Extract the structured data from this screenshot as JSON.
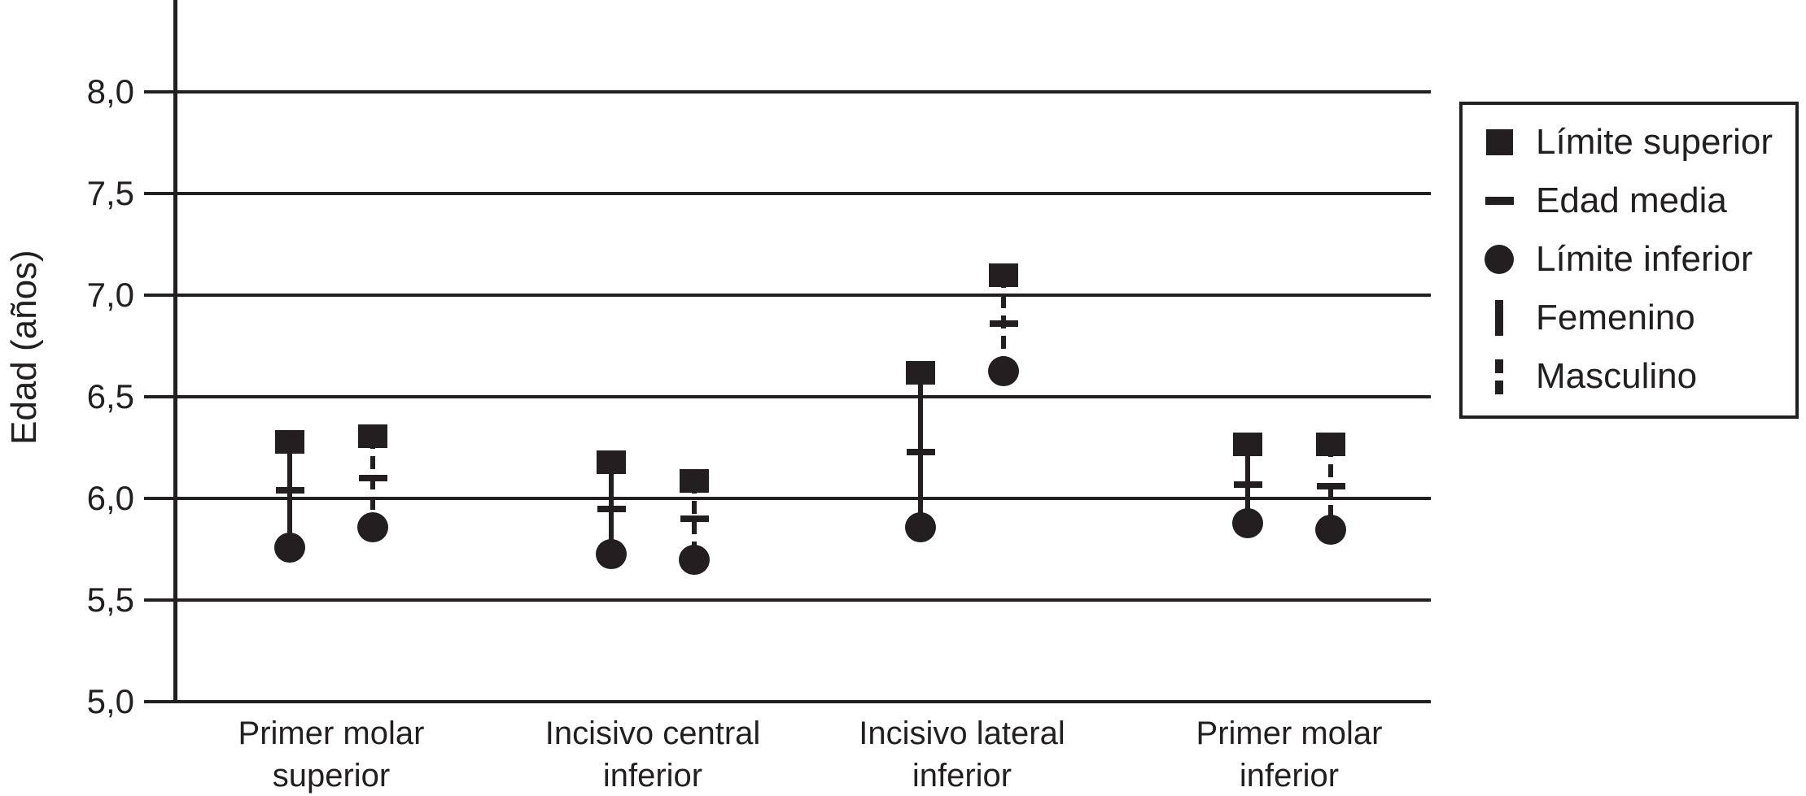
{
  "chart_data": {
    "type": "scatter",
    "title": "",
    "xlabel": "",
    "ylabel": "Edad (años)",
    "ylim": [
      5.0,
      8.45
    ],
    "grid": true,
    "legend_position": "right",
    "yticks": [
      {
        "value": 8.0,
        "label": "8,0"
      },
      {
        "value": 7.5,
        "label": "7,5"
      },
      {
        "value": 7.0,
        "label": "7,0"
      },
      {
        "value": 6.5,
        "label": "6,5"
      },
      {
        "value": 6.0,
        "label": "6,0"
      },
      {
        "value": 5.5,
        "label": "5,5"
      },
      {
        "value": 5.0,
        "label": "5,0"
      }
    ],
    "categories": [
      {
        "label": "Primer molar superior",
        "lines": [
          "Primer molar",
          "superior"
        ]
      },
      {
        "label": "Incisivo central inferior",
        "lines": [
          "Incisivo central",
          "inferior"
        ]
      },
      {
        "label": "Incisivo lateral inferior",
        "lines": [
          "Incisivo lateral",
          "inferior"
        ]
      },
      {
        "label": "Primer molar inferior",
        "lines": [
          "Primer molar",
          "inferior"
        ]
      }
    ],
    "series": [
      {
        "name": "Femenino",
        "line_style": "solid",
        "data": [
          {
            "limite_superior": 6.28,
            "edad_media": 6.04,
            "limite_inferior": 5.76
          },
          {
            "limite_superior": 6.18,
            "edad_media": 5.95,
            "limite_inferior": 5.73
          },
          {
            "limite_superior": 6.62,
            "edad_media": 6.23,
            "limite_inferior": 5.86
          },
          {
            "limite_superior": 6.27,
            "edad_media": 6.07,
            "limite_inferior": 5.88
          }
        ]
      },
      {
        "name": "Masculino",
        "line_style": "dashed",
        "data": [
          {
            "limite_superior": 6.31,
            "edad_media": 6.1,
            "limite_inferior": 5.86
          },
          {
            "limite_superior": 6.09,
            "edad_media": 5.9,
            "limite_inferior": 5.7
          },
          {
            "limite_superior": 7.1,
            "edad_media": 6.86,
            "limite_inferior": 6.63
          },
          {
            "limite_superior": 6.27,
            "edad_media": 6.06,
            "limite_inferior": 5.85
          }
        ]
      }
    ],
    "legend": [
      {
        "marker": "square",
        "label": "Límite superior"
      },
      {
        "marker": "dash",
        "label": "Edad media"
      },
      {
        "marker": "circle",
        "label": "Límite inferior"
      },
      {
        "marker": "solid-bar",
        "label": "Femenino"
      },
      {
        "marker": "dashed-bar",
        "label": "Masculino"
      }
    ],
    "colors": {
      "ink": "#231f20",
      "background": "#ffffff"
    }
  }
}
